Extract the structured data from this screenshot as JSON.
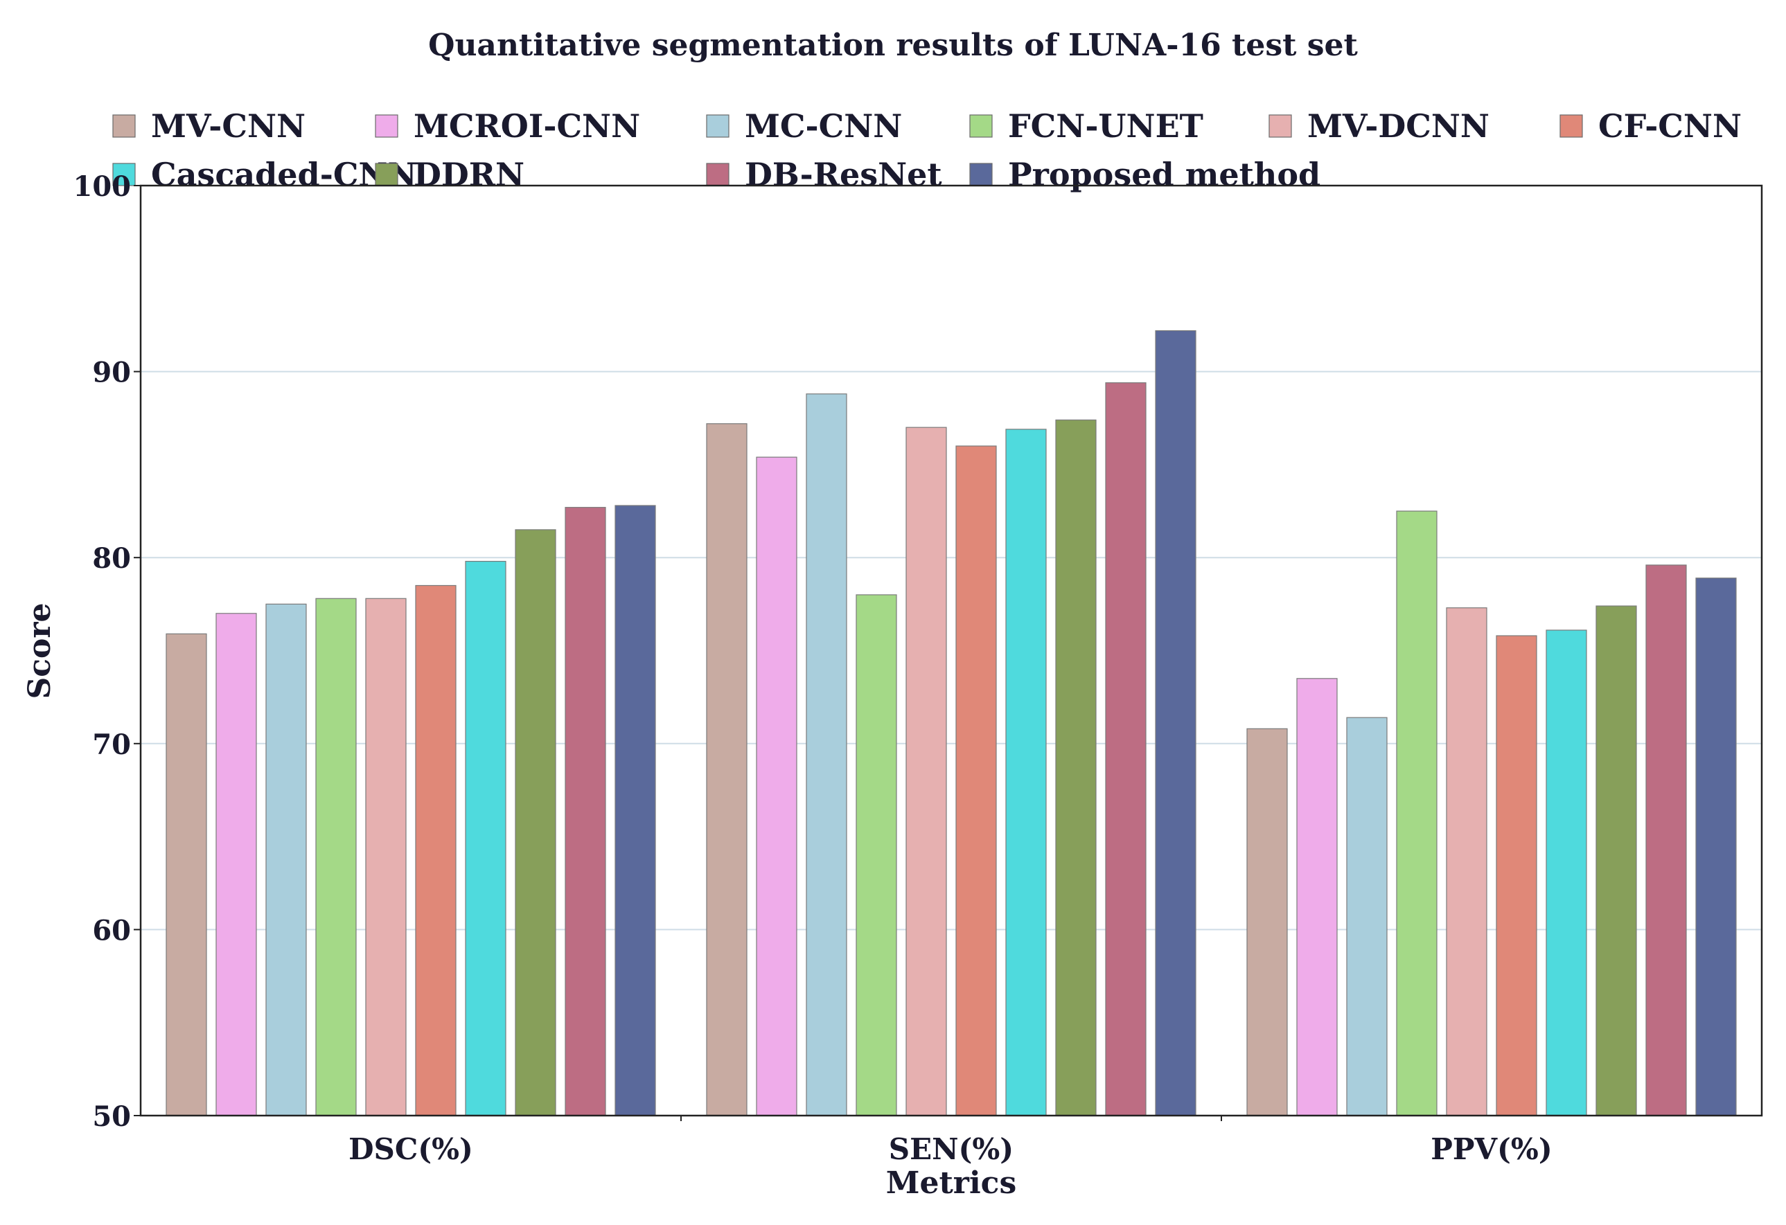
{
  "chart_data": {
    "type": "bar",
    "title": "Quantitative segmentation results of LUNA-16 test set",
    "xlabel": "Metrics",
    "ylabel": "Score",
    "ylim": [
      50,
      100
    ],
    "yticks": [
      "50",
      "60",
      "70",
      "80",
      "90",
      "100"
    ],
    "grid": true,
    "legend_position": "top",
    "categories": [
      "DSC(%)",
      "SEN(%)",
      "PPV(%)"
    ],
    "series": [
      {
        "name": "MV-CNN",
        "color": "#c8aba2",
        "values": [
          75.9,
          87.2,
          70.8
        ]
      },
      {
        "name": "MCROI-CNN",
        "color": "#efacea",
        "values": [
          77.0,
          85.4,
          73.5
        ]
      },
      {
        "name": "MC-CNN",
        "color": "#a9cedc",
        "values": [
          77.5,
          88.8,
          71.4
        ]
      },
      {
        "name": "FCN-UNET",
        "color": "#a4d987",
        "values": [
          77.8,
          78.0,
          82.5
        ]
      },
      {
        "name": "MV-DCNN",
        "color": "#e6b0b0",
        "values": [
          77.8,
          87.0,
          77.3
        ]
      },
      {
        "name": "CF-CNN",
        "color": "#e08878",
        "values": [
          78.5,
          86.0,
          75.8
        ]
      },
      {
        "name": "Cascaded-CNN",
        "color": "#4fdadd",
        "values": [
          79.8,
          86.9,
          76.1
        ]
      },
      {
        "name": "DDRN",
        "color": "#879f5a",
        "values": [
          81.5,
          87.4,
          77.4
        ]
      },
      {
        "name": "DB-ResNet",
        "color": "#bd6d83",
        "values": [
          82.7,
          89.4,
          79.6
        ]
      },
      {
        "name": "Proposed method",
        "color": "#5a699b",
        "values": [
          82.8,
          92.2,
          78.9
        ]
      }
    ]
  }
}
